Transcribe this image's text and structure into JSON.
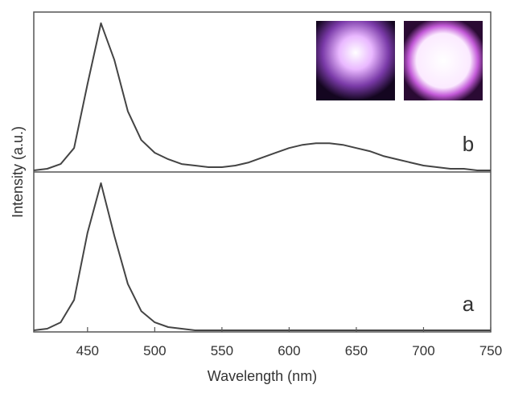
{
  "chart_data": [
    {
      "type": "line",
      "label": "b",
      "ylabel": "Intensity (a.u.)",
      "color": "#444",
      "x": [
        410,
        420,
        430,
        440,
        450,
        460,
        470,
        480,
        490,
        500,
        510,
        520,
        530,
        540,
        550,
        560,
        570,
        580,
        590,
        600,
        610,
        620,
        630,
        640,
        650,
        660,
        670,
        680,
        690,
        700,
        710,
        720,
        730,
        740,
        750
      ],
      "values": [
        0.01,
        0.02,
        0.05,
        0.15,
        0.55,
        0.93,
        0.7,
        0.38,
        0.2,
        0.12,
        0.08,
        0.05,
        0.04,
        0.03,
        0.03,
        0.04,
        0.06,
        0.09,
        0.12,
        0.15,
        0.17,
        0.18,
        0.18,
        0.17,
        0.15,
        0.13,
        0.1,
        0.08,
        0.06,
        0.04,
        0.03,
        0.02,
        0.02,
        0.01,
        0.01
      ],
      "xlim": [
        410,
        750
      ],
      "ylim": [
        0,
        1
      ]
    },
    {
      "type": "line",
      "label": "a",
      "xlabel": "Wavelength (nm)",
      "color": "#444",
      "x": [
        410,
        420,
        430,
        440,
        450,
        460,
        470,
        480,
        490,
        500,
        510,
        520,
        530,
        540,
        550,
        560,
        570,
        580,
        590,
        600,
        610,
        620,
        630,
        640,
        650,
        660,
        670,
        680,
        690,
        700,
        710,
        720,
        730,
        740,
        750
      ],
      "values": [
        0.01,
        0.02,
        0.06,
        0.2,
        0.62,
        0.93,
        0.6,
        0.3,
        0.13,
        0.06,
        0.03,
        0.02,
        0.01,
        0.01,
        0.01,
        0.01,
        0.01,
        0.01,
        0.01,
        0.01,
        0.01,
        0.01,
        0.01,
        0.01,
        0.01,
        0.01,
        0.01,
        0.01,
        0.01,
        0.01,
        0.01,
        0.01,
        0.01,
        0.01,
        0.01
      ],
      "xlim": [
        410,
        750
      ],
      "ylim": [
        0,
        1
      ],
      "xticks": [
        450,
        500,
        550,
        600,
        650,
        700,
        750
      ]
    }
  ]
}
